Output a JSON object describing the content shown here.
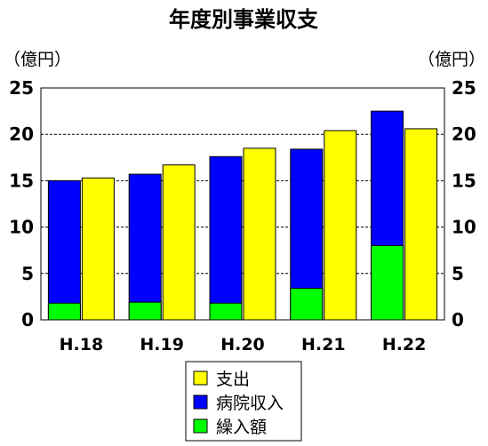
{
  "chart_data": {
    "type": "bar",
    "title": "年度別事業収支",
    "y_unit_left": "（億円）",
    "y_unit_right": "（億円）",
    "categories": [
      "H.18",
      "H.19",
      "H.20",
      "H.21",
      "H.22"
    ],
    "ylim": [
      0,
      25
    ],
    "yticks": [
      0,
      5,
      10,
      15,
      20,
      25
    ],
    "grid": true,
    "legend_position": "bottom-center",
    "series": [
      {
        "name": "支出",
        "values": [
          15.3,
          16.7,
          18.5,
          20.4,
          20.6
        ],
        "color": "#ffff00",
        "stack": "b"
      },
      {
        "name": "病院収入",
        "values": [
          15.0,
          15.7,
          17.6,
          18.4,
          22.5
        ],
        "color": "#0000ff",
        "stack": "a"
      },
      {
        "name": "繰入額",
        "values": [
          1.8,
          1.9,
          1.8,
          3.4,
          8.0
        ],
        "color": "#00ff00",
        "stack": "a"
      }
    ]
  }
}
